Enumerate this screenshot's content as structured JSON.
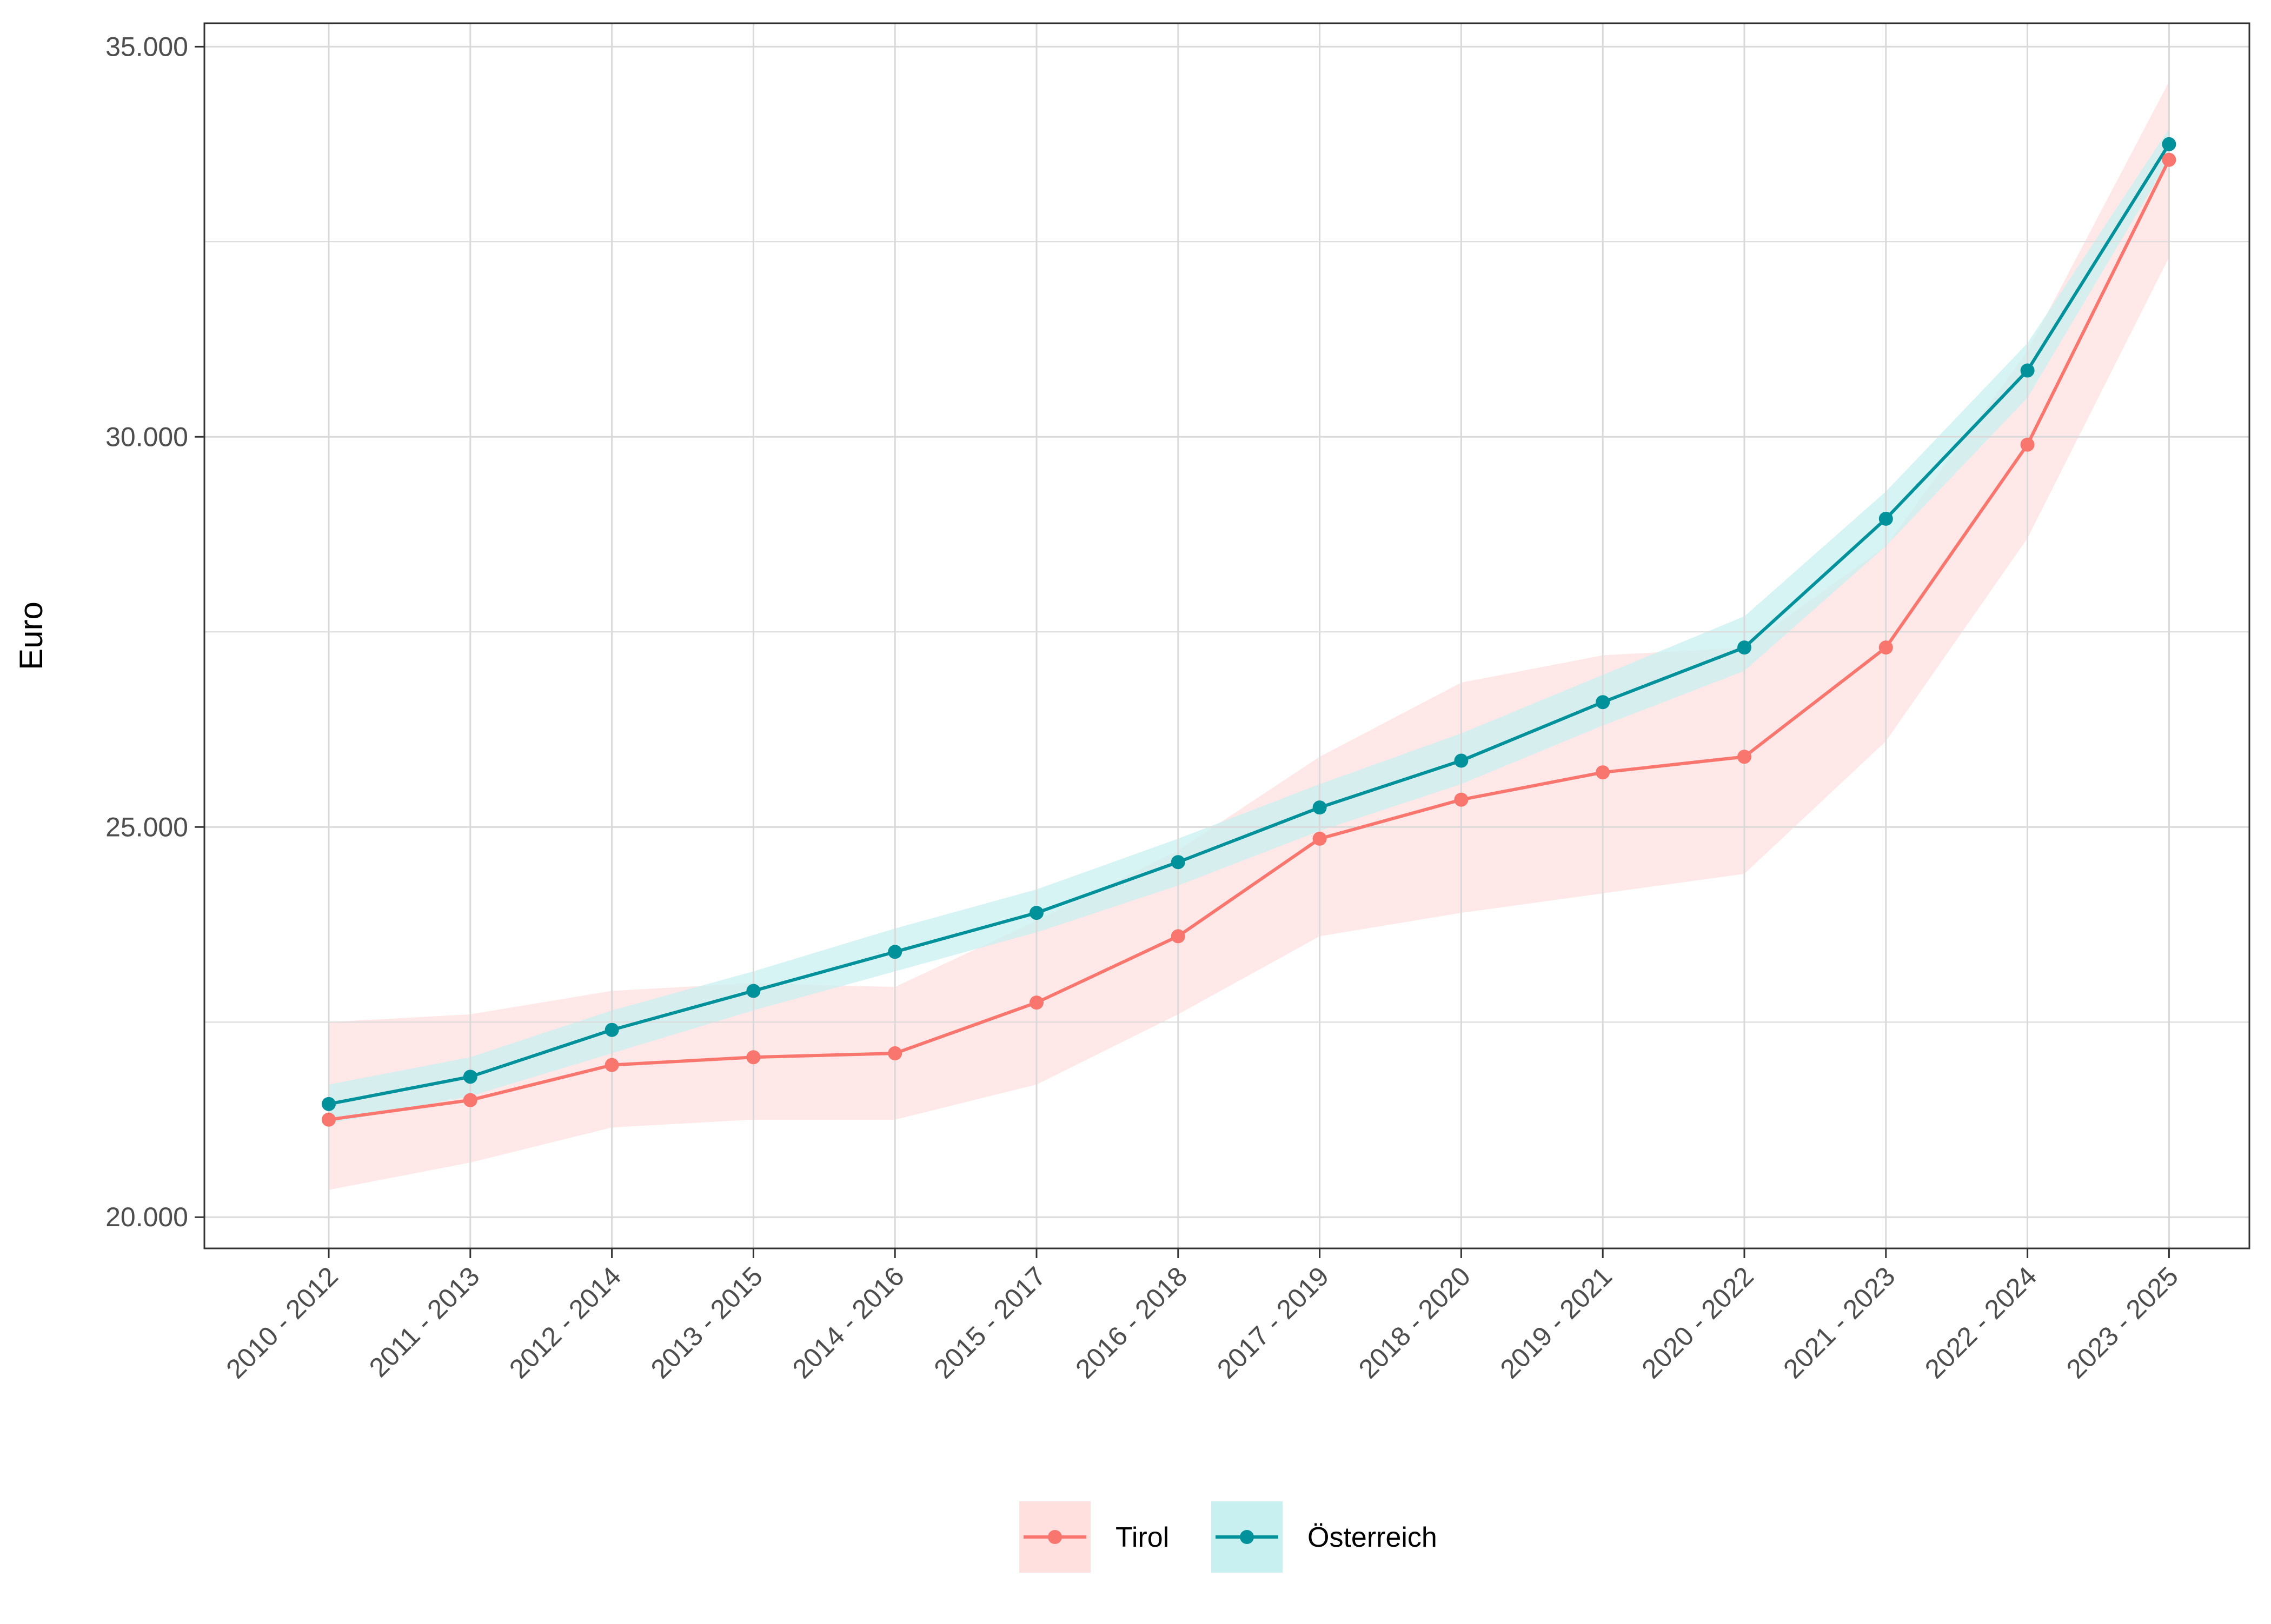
{
  "chart_data": {
    "type": "line",
    "title": "",
    "xlabel": "",
    "ylabel": "Euro",
    "categories": [
      "2010 - 2012",
      "2011 - 2013",
      "2012 - 2014",
      "2013 - 2015",
      "2014 - 2016",
      "2015 - 2017",
      "2016 - 2018",
      "2017 - 2019",
      "2018 - 2020",
      "2019 - 2021",
      "2020 - 2022",
      "2021 - 2023",
      "2022 - 2024",
      "2023 - 2025"
    ],
    "ylim": [
      19600,
      35300
    ],
    "y_ticks": [
      20000,
      25000,
      30000,
      35000
    ],
    "y_tick_labels": [
      "20.000",
      "25.000",
      "30.000",
      "35.000"
    ],
    "grid": true,
    "legend_position": "bottom",
    "series": [
      {
        "name": "Tirol",
        "color": "#F8766D",
        "band_color": "#FFE0DF",
        "values": [
          21250,
          21500,
          21950,
          22050,
          22100,
          22750,
          23600,
          24850,
          25350,
          25700,
          25900,
          27300,
          29900,
          33550
        ],
        "lower": [
          20350,
          20700,
          21150,
          21250,
          21250,
          21700,
          22600,
          23600,
          23900,
          24150,
          24400,
          26100,
          28700,
          32300
        ],
        "upper": [
          22500,
          22600,
          22900,
          23000,
          22950,
          23800,
          24700,
          25900,
          26850,
          27200,
          27300,
          28600,
          31100,
          34550
        ]
      },
      {
        "name": "Österreich",
        "color": "#00919A",
        "band_color": "#C9F0F1",
        "values": [
          21450,
          21800,
          22400,
          22900,
          23400,
          23900,
          24550,
          25250,
          25850,
          26600,
          27300,
          28950,
          30850,
          33750
        ],
        "lower": [
          21200,
          21550,
          22100,
          22650,
          23150,
          23650,
          24250,
          24950,
          25550,
          26300,
          27000,
          28600,
          30500,
          33550
        ],
        "upper": [
          21700,
          22050,
          22650,
          23150,
          23700,
          24200,
          24850,
          25550,
          26200,
          26950,
          27700,
          29300,
          31200,
          33950
        ]
      }
    ]
  }
}
